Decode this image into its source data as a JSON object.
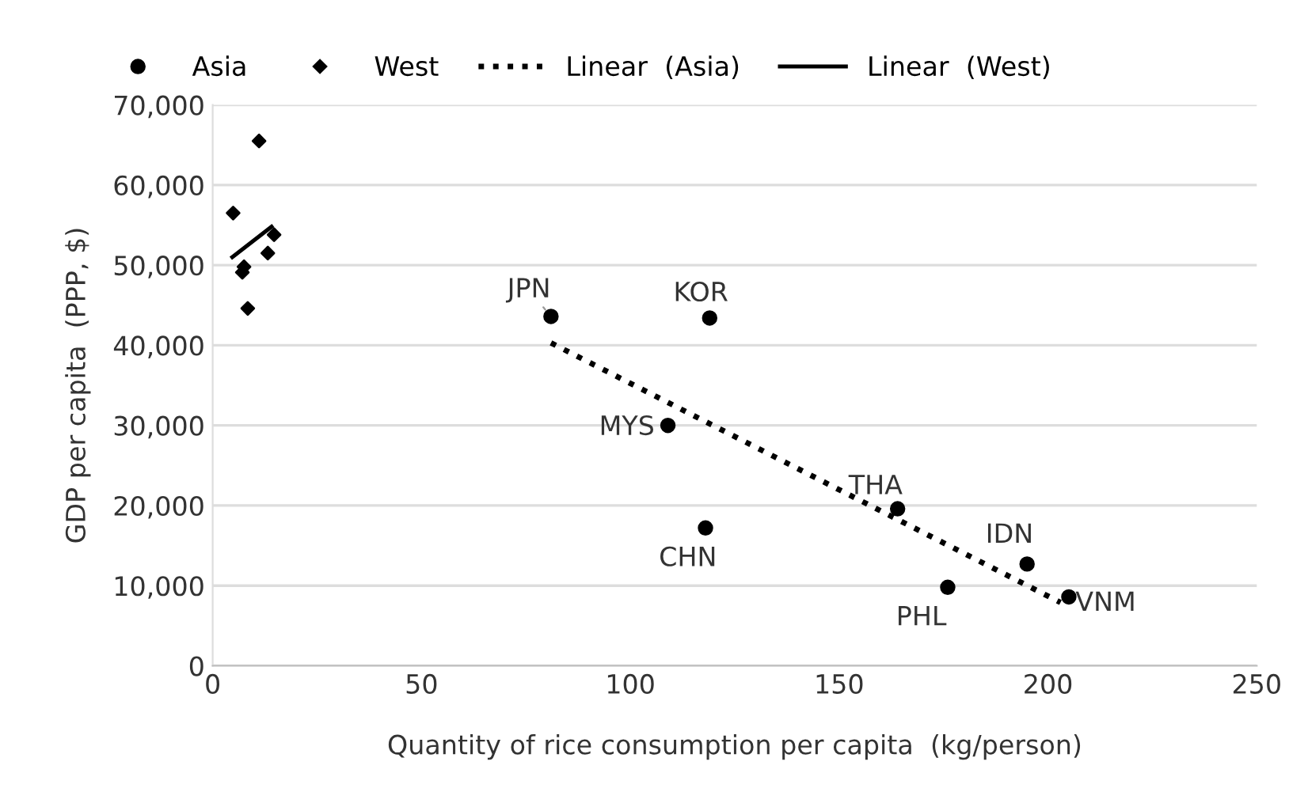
{
  "chart_data": {
    "type": "scatter",
    "xlabel": "Quantity of rice consumption per capita  (kg/person)",
    "ylabel": "GDP per capita  (PPP, $)",
    "xlim": [
      0,
      250
    ],
    "xticks": [
      0,
      50,
      100,
      150,
      200,
      250
    ],
    "ylim": [
      0,
      70000
    ],
    "yticks": [
      {
        "value": 0,
        "label": "0"
      },
      {
        "value": 10000,
        "label": "10,000"
      },
      {
        "value": 20000,
        "label": "20,000"
      },
      {
        "value": 30000,
        "label": "30,000"
      },
      {
        "value": 40000,
        "label": "40,000"
      },
      {
        "value": 50000,
        "label": "50,000"
      },
      {
        "value": 60000,
        "label": "60,000"
      },
      {
        "value": 70000,
        "label": "70,000"
      }
    ],
    "grid": "y",
    "legend": "top",
    "series": [
      {
        "name": "Asia",
        "marker": "circle",
        "color": "#000000",
        "x": [
          81,
          119,
          109,
          118,
          164,
          195,
          176,
          205
        ],
        "values": [
          43600,
          43400,
          30000,
          17200,
          19600,
          12700,
          9800,
          8600
        ]
      },
      {
        "name": "West",
        "marker": "diamond",
        "color": "#000000",
        "x": [
          11.1,
          4.9,
          14.7,
          13.2,
          7.5,
          7.1,
          8.4
        ],
        "values": [
          65500,
          56500,
          53800,
          51500,
          49800,
          49100,
          44600
        ]
      },
      {
        "name": "Linear  (Asia)",
        "type": "line",
        "line_style": "dotted",
        "color": "#000000",
        "x": [
          81,
          203
        ],
        "values": [
          40300,
          7900
        ]
      },
      {
        "name": "Linear  (West)",
        "type": "line",
        "line_style": "solid",
        "color": "#000000",
        "x": [
          4.7,
          14.1
        ],
        "values": [
          51000,
          54800
        ]
      }
    ],
    "annotations": [
      {
        "text": "JPN",
        "x": 81,
        "y": 43600
      },
      {
        "text": "KOR",
        "x": 119,
        "y": 43400
      },
      {
        "text": "MYS",
        "x": 109,
        "y": 30000
      },
      {
        "text": "CHN",
        "x": 118,
        "y": 17200
      },
      {
        "text": "THA",
        "x": 164,
        "y": 19600
      },
      {
        "text": "IDN",
        "x": 195,
        "y": 12700
      },
      {
        "text": "PHL",
        "x": 176,
        "y": 9800
      },
      {
        "text": "VNM",
        "x": 205,
        "y": 8600
      }
    ]
  }
}
